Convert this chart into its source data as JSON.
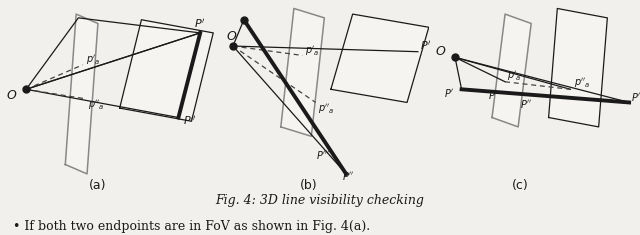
{
  "title": "Fig. 4: 3D line visibility checking",
  "caption": "• If both two endpoints are in FoV as shown in Fig. 4(a).",
  "subfig_labels": [
    "(a)",
    "(b)",
    "(c)"
  ],
  "bg_color": "#f2f0ec",
  "line_color": "#1a1a1a",
  "gray_color": "#888888",
  "dashed_color": "#444444",
  "thick_lw": 2.8,
  "thin_lw": 0.9,
  "gray_lw": 1.1,
  "font_size_label": 8,
  "font_size_caption": 9,
  "font_size_title": 9,
  "font_size_O": 9
}
